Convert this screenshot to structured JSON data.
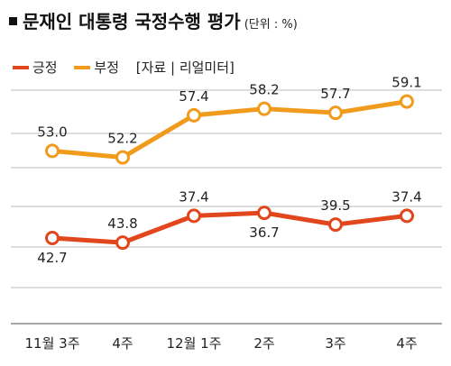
{
  "title": "문재인 대통령 국정수행 평가",
  "unit": "(단위 : %)",
  "legend": {
    "positive": "긍정",
    "negative": "부정",
    "source": "[자료 | 리얼미터]"
  },
  "colors": {
    "positive": "#e2461d",
    "negative": "#f19b1d",
    "grid": "#bdbdbd",
    "axis": "#8a8a8a"
  },
  "chart_data": {
    "type": "line",
    "categories": [
      "11월 3주",
      "4주",
      "12월 1주",
      "2주",
      "3주",
      "4주"
    ],
    "series": [
      {
        "name": "부정",
        "values": [
          53.0,
          52.2,
          57.4,
          58.2,
          57.7,
          59.1
        ]
      },
      {
        "name": "긍정",
        "values": [
          42.7,
          43.8,
          37.4,
          36.7,
          39.5,
          37.4
        ]
      }
    ],
    "value_labels": {
      "부정": [
        "53.0",
        "52.2",
        "57.4",
        "58.2",
        "57.7",
        "59.1"
      ],
      "긍정": [
        "42.7",
        "43.8",
        "37.4",
        "36.7",
        "39.5",
        "37.4"
      ]
    },
    "grid": true,
    "legend_position": "top-left"
  }
}
